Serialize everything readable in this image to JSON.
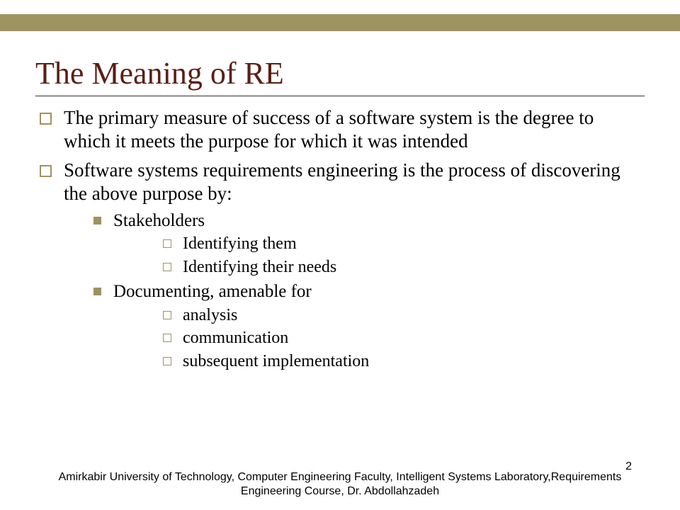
{
  "colors": {
    "accent": "#9d9360",
    "title": "#5a1f15",
    "text": "#000000",
    "background": "#ffffff"
  },
  "typography": {
    "title_fontsize_pt": 33,
    "body_fontsize_pt": 20,
    "sub_fontsize_pt": 19,
    "subsub_fontsize_pt": 18,
    "footer_fontsize_pt": 12,
    "title_family": "Times New Roman",
    "footer_family": "Arial"
  },
  "title": "The Meaning of RE",
  "bullets": [
    {
      "text": "The primary measure of success of a software system is the degree to which it meets the purpose for which it was intended"
    },
    {
      "text": "Software systems requirements engineering is the process of discovering the above purpose by:",
      "children": [
        {
          "text": "Stakeholders",
          "children": [
            {
              "text": "Identifying them"
            },
            {
              "text": "Identifying their needs"
            }
          ]
        },
        {
          "text": "Documenting, amenable for",
          "children": [
            {
              "text": "analysis"
            },
            {
              "text": "communication"
            },
            {
              "text": "subsequent implementation"
            }
          ]
        }
      ]
    }
  ],
  "footer": "Amirkabir University of Technology, Computer Engineering Faculty, Intelligent Systems Laboratory,Requirements Engineering Course, Dr. Abdollahzadeh",
  "page_number": "2"
}
